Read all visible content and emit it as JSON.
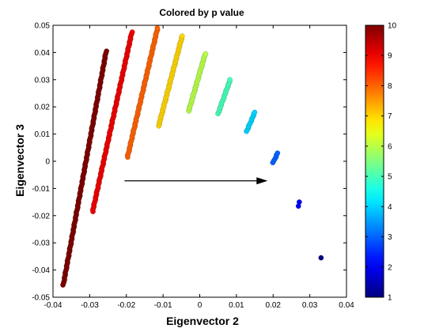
{
  "chart_data": {
    "type": "scatter",
    "title": "Colored by p value",
    "xlabel": "Eigenvector 2",
    "ylabel": "Eigenvector 3",
    "xlim": [
      -0.04,
      0.04
    ],
    "ylim": [
      -0.05,
      0.05
    ],
    "xticks": [
      -0.04,
      -0.03,
      -0.02,
      -0.01,
      0,
      0.01,
      0.02,
      0.03,
      0.04
    ],
    "xtick_labels": [
      "-0.04",
      "-0.03",
      "-0.02",
      "-0.01",
      "0",
      "0.01",
      "0.02",
      "0.03",
      "0.04"
    ],
    "yticks": [
      -0.05,
      -0.04,
      -0.03,
      -0.02,
      -0.01,
      0,
      0.01,
      0.02,
      0.03,
      0.04,
      0.05
    ],
    "ytick_labels": [
      "-0.05",
      "-0.04",
      "-0.03",
      "-0.02",
      "-0.01",
      "0",
      "0.01",
      "0.02",
      "0.03",
      "0.04",
      "0.05"
    ],
    "grid": false,
    "colormap": "jet",
    "colorbar": {
      "range": [
        1,
        10
      ],
      "ticks": [
        1,
        2,
        3,
        4,
        5,
        6,
        7,
        8,
        9,
        10
      ],
      "tick_labels": [
        "1",
        "2",
        "3",
        "4",
        "5",
        "6",
        "7",
        "8",
        "9",
        "10"
      ]
    },
    "series": [
      {
        "value": 10,
        "start": [
          -0.0372,
          -0.0455
        ],
        "end": [
          -0.0255,
          0.0405
        ]
      },
      {
        "value": 9,
        "start": [
          -0.0292,
          -0.0185
        ],
        "end": [
          -0.0185,
          0.0475
        ]
      },
      {
        "value": 8,
        "start": [
          -0.0197,
          0.0015
        ],
        "end": [
          -0.0115,
          0.049
        ]
      },
      {
        "value": 7,
        "start": [
          -0.0112,
          0.013
        ],
        "end": [
          -0.0048,
          0.046
        ]
      },
      {
        "value": 6,
        "start": [
          -0.003,
          0.0185
        ],
        "end": [
          0.0015,
          0.0395
        ]
      },
      {
        "value": 5,
        "start": [
          0.005,
          0.0175
        ],
        "end": [
          0.0083,
          0.03
        ]
      },
      {
        "value": 4,
        "start": [
          0.0128,
          0.011
        ],
        "end": [
          0.015,
          0.018
        ]
      },
      {
        "value": 3,
        "start": [
          0.02,
          -0.0005
        ],
        "end": [
          0.0212,
          0.003
        ]
      },
      {
        "value": 2,
        "start": [
          0.0268,
          -0.0165
        ],
        "end": [
          0.0272,
          -0.015
        ]
      },
      {
        "value": 1,
        "start": [
          0.033,
          -0.0355
        ],
        "end": [
          0.033,
          -0.0355
        ]
      }
    ],
    "arrow": {
      "from": [
        -0.0205,
        -0.0072
      ],
      "to": [
        0.0185,
        -0.0072
      ]
    }
  }
}
